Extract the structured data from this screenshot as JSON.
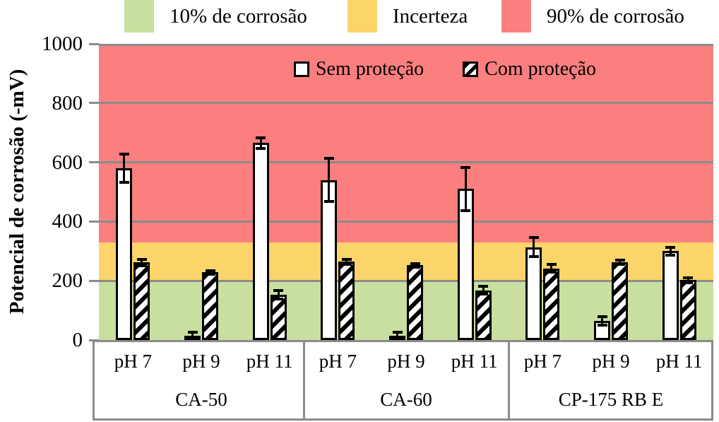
{
  "chart_data": {
    "type": "bar",
    "title": "",
    "ylabel": "Potencial de corrosão (-mV)",
    "xlabel": "",
    "ylim": [
      0,
      1000
    ],
    "yticks": [
      0,
      200,
      400,
      600,
      800,
      1000
    ],
    "grid": true,
    "legend_bands_position": "top",
    "series_legend_position": "inside-top",
    "groups": [
      "CA-50",
      "CA-60",
      "CP-175 RB E"
    ],
    "categories": [
      "pH 7",
      "pH 9",
      "pH 11"
    ],
    "series": [
      {
        "name": "Sem proteção",
        "style": "plain",
        "values": [
          [
            580,
            10,
            665
          ],
          [
            540,
            15,
            510
          ],
          [
            313,
            65,
            300
          ]
        ],
        "errors": [
          [
            45,
            15,
            15
          ],
          [
            70,
            10,
            70
          ],
          [
            30,
            12,
            10
          ]
        ]
      },
      {
        "name": "Com proteção",
        "style": "hatched",
        "values": [
          [
            262,
            228,
            152
          ],
          [
            264,
            252,
            168
          ],
          [
            242,
            263,
            202
          ]
        ],
        "errors": [
          [
            8,
            4,
            12
          ],
          [
            6,
            4,
            10
          ],
          [
            10,
            5,
            6
          ]
        ]
      }
    ],
    "bands": [
      {
        "label": "10% de corrosão",
        "from": 0,
        "to": 200,
        "color": "#C8DF9F"
      },
      {
        "label": "Incerteza",
        "from": 200,
        "to": 330,
        "color": "#FBD56A"
      },
      {
        "label": "90% de corrosão",
        "from": 330,
        "to": 1000,
        "color": "#FB7F7F"
      }
    ],
    "colors": {
      "bar_fill": "#FFFFFF",
      "bar_border": "#000000",
      "gridline": "#8B8B8B",
      "axis_box_border": "#8B8B8B"
    }
  }
}
